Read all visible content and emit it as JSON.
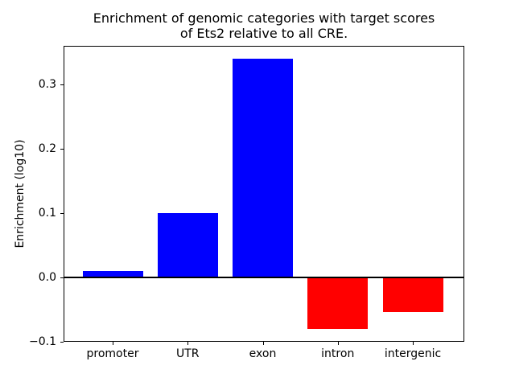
{
  "chart_data": {
    "type": "bar",
    "title": "Enrichment of genomic categories with target scores\nof Ets2 relative to all CRE.",
    "ylabel": "Enrichment (log10)",
    "xlabel": "",
    "categories": [
      "promoter",
      "UTR",
      "exon",
      "intron",
      "intergenic"
    ],
    "values": [
      0.01,
      0.1,
      0.34,
      -0.08,
      -0.054
    ],
    "bar_color_positive": "#0000ff",
    "bar_color_negative": "#ff0000",
    "ylim": [
      -0.1,
      0.36
    ],
    "yticks": {
      "values": [
        -0.1,
        0.0,
        0.1,
        0.2,
        0.3
      ],
      "labels": [
        "−0.1",
        "0.0",
        "0.1",
        "0.2",
        "0.3"
      ]
    },
    "zero_line": true,
    "grid": false,
    "legend": "none",
    "background_color": "#ffffff",
    "axis_color": "#000000"
  }
}
